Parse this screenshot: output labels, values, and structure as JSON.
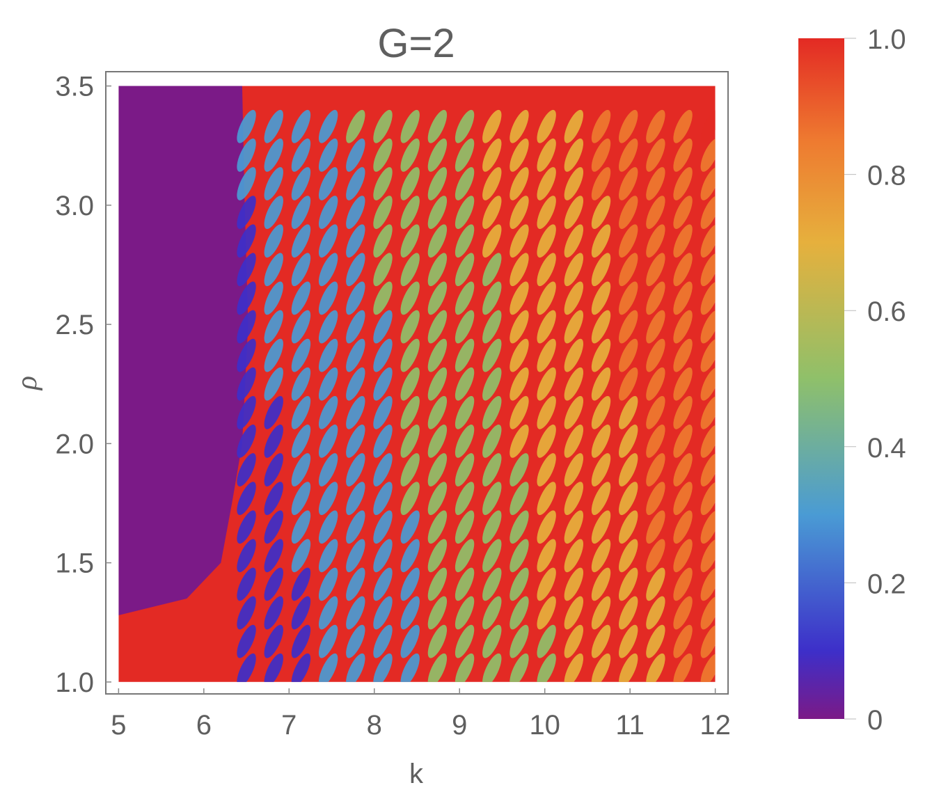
{
  "chart_data": {
    "type": "heatmap",
    "title": "G=2",
    "xlabel": "k",
    "ylabel": "ρ",
    "xlim": [
      4.85,
      12.15
    ],
    "ylim": [
      0.95,
      3.56
    ],
    "data_xrange": [
      5,
      12
    ],
    "data_yrange": [
      1.0,
      3.5
    ],
    "xticks": [
      5,
      6,
      7,
      8,
      9,
      10,
      11,
      12
    ],
    "xtick_labels": [
      "5",
      "6",
      "7",
      "8",
      "9",
      "10",
      "11",
      "12"
    ],
    "yticks": [
      1.0,
      1.5,
      2.0,
      2.5,
      3.0,
      3.5
    ],
    "ytick_labels": [
      "1.0",
      "1.5",
      "2.0",
      "2.5",
      "3.0",
      "3.5"
    ],
    "colorbar": {
      "range": [
        0,
        1
      ],
      "ticks": [
        0,
        0.2,
        0.4,
        0.6,
        0.8,
        1.0
      ],
      "tick_labels": [
        "0",
        "0.2",
        "0.4",
        "0.6",
        "0.8",
        "1.0"
      ],
      "colormap": [
        "#7b1a87",
        "#3d2fc9",
        "#4a9bd4",
        "#8fc06a",
        "#e6b03d",
        "#ee7a30",
        "#e32a24"
      ]
    },
    "grid": false,
    "legend": "colorbar right",
    "colors": {
      "background_region": "#7b1a87",
      "high": "#e32a24",
      "frame": "#777777",
      "text": "#5f5f5f"
    }
  }
}
